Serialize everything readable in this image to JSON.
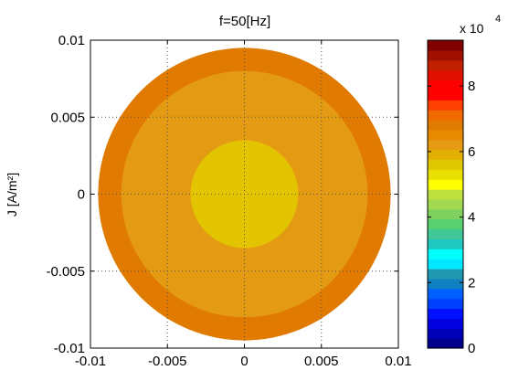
{
  "chart_data": {
    "type": "heatmap",
    "title": "f=50[Hz]",
    "ylabel": "J [A/m²]",
    "xlabel": "",
    "xlim": [
      -0.01,
      0.01
    ],
    "ylim": [
      -0.01,
      0.01
    ],
    "xticks": [
      -0.01,
      -0.005,
      0,
      0.005,
      0.01
    ],
    "yticks": [
      -0.01,
      -0.005,
      0,
      0.005,
      0.01
    ],
    "xtick_labels": [
      "-0.01",
      "-0.005",
      "0",
      "0.005",
      "0.01"
    ],
    "ytick_labels": [
      "-0.01",
      "-0.005",
      "0",
      "0.005",
      "0.01"
    ],
    "grid": true,
    "regions": [
      {
        "radius": 0.0095,
        "value": 70000,
        "color": "#e07a00"
      },
      {
        "radius": 0.008,
        "value": 66000,
        "color": "#e59a14"
      },
      {
        "radius": 0.0035,
        "value": 62000,
        "color": "#e2c400"
      }
    ],
    "colorbar": {
      "min": 0,
      "max": 94000,
      "multiplier": "x 10",
      "exponent": "4",
      "ticks": [
        0,
        20000,
        40000,
        60000,
        80000
      ],
      "tick_labels": [
        "0",
        "2",
        "4",
        "6",
        "8"
      ],
      "colors": [
        "#00008f",
        "#0000b8",
        "#0000e0",
        "#0010ff",
        "#0040ff",
        "#0060ff",
        "#1080c0",
        "#2098b0",
        "#00e8ff",
        "#00ffff",
        "#20c8c0",
        "#40c898",
        "#58d070",
        "#80d060",
        "#a0d850",
        "#c0e040",
        "#ffff00",
        "#e8e000",
        "#e0c800",
        "#e2b000",
        "#e59a14",
        "#e68a00",
        "#e07a00",
        "#f06a00",
        "#ff4000",
        "#ff0000",
        "#ff0000",
        "#e01000",
        "#c02000",
        "#a01000",
        "#800000"
      ]
    }
  }
}
